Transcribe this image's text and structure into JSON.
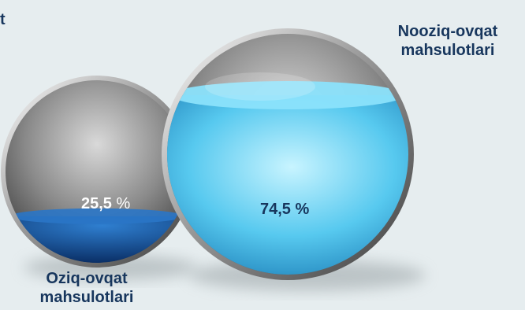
{
  "chart_data": {
    "type": "pie",
    "title": "",
    "categories": [
      "Oziq-ovqat mahsulotlari",
      "Nooziq-ovqat mahsulotlari"
    ],
    "values": [
      25.5,
      74.5
    ],
    "value_labels": [
      "25,5",
      "74,5 %"
    ],
    "unit": "%",
    "colors": [
      "#1f5fa8",
      "#5fd0f0"
    ]
  },
  "labels": {
    "food_line1": "Oziq-ovqat",
    "food_line2": "mahsulotlari",
    "nonfood_line1": "Nooziq-ovqat",
    "nonfood_line2": "mahsulotlari",
    "corner_fragment": "t"
  }
}
